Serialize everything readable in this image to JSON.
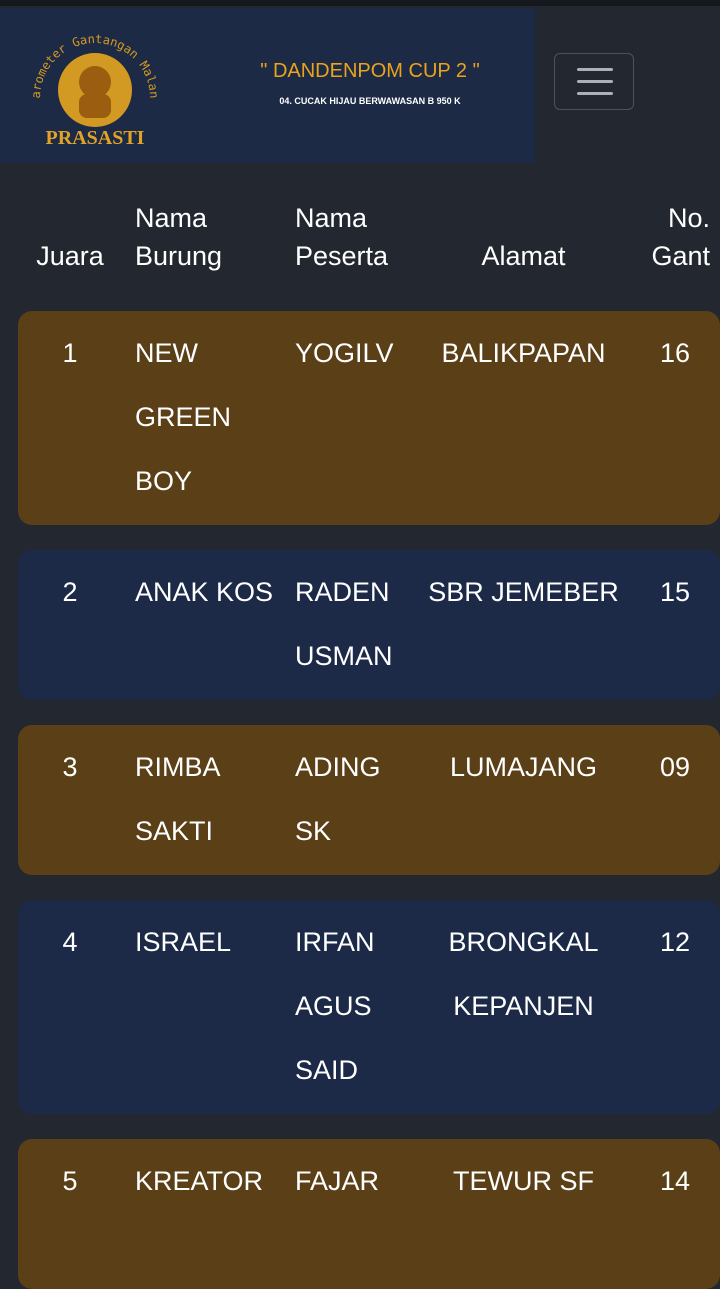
{
  "header": {
    "logo_arc": "Barometer Gantangan Malang",
    "logo_name": "PRASASTI",
    "title": "\" DANDENPOM CUP 2 \"",
    "subtitle": "04. CUCAK HIJAU BERWAWASAN B 950 K"
  },
  "table": {
    "columns": [
      "Juara",
      "Nama Burung",
      "Nama Peserta",
      "Alamat",
      "No. Gant"
    ],
    "rows": [
      [
        "1",
        "NEW GREEN BOY",
        "YOGILV",
        "BALIKPAPAN",
        "16"
      ],
      [
        "2",
        "ANAK KOS",
        "RADEN USMAN",
        "SBR JEMEBER",
        "15"
      ],
      [
        "3",
        "RIMBA SAKTI",
        "ADING SK",
        "LUMAJANG",
        "09"
      ],
      [
        "4",
        "ISRAEL",
        "IRFAN AGUS SAID",
        "BRONGKAL KEPANJEN",
        "12"
      ],
      [
        "5",
        "KREATOR",
        "FAJAR",
        "TEWUR SF",
        "14"
      ]
    ]
  }
}
